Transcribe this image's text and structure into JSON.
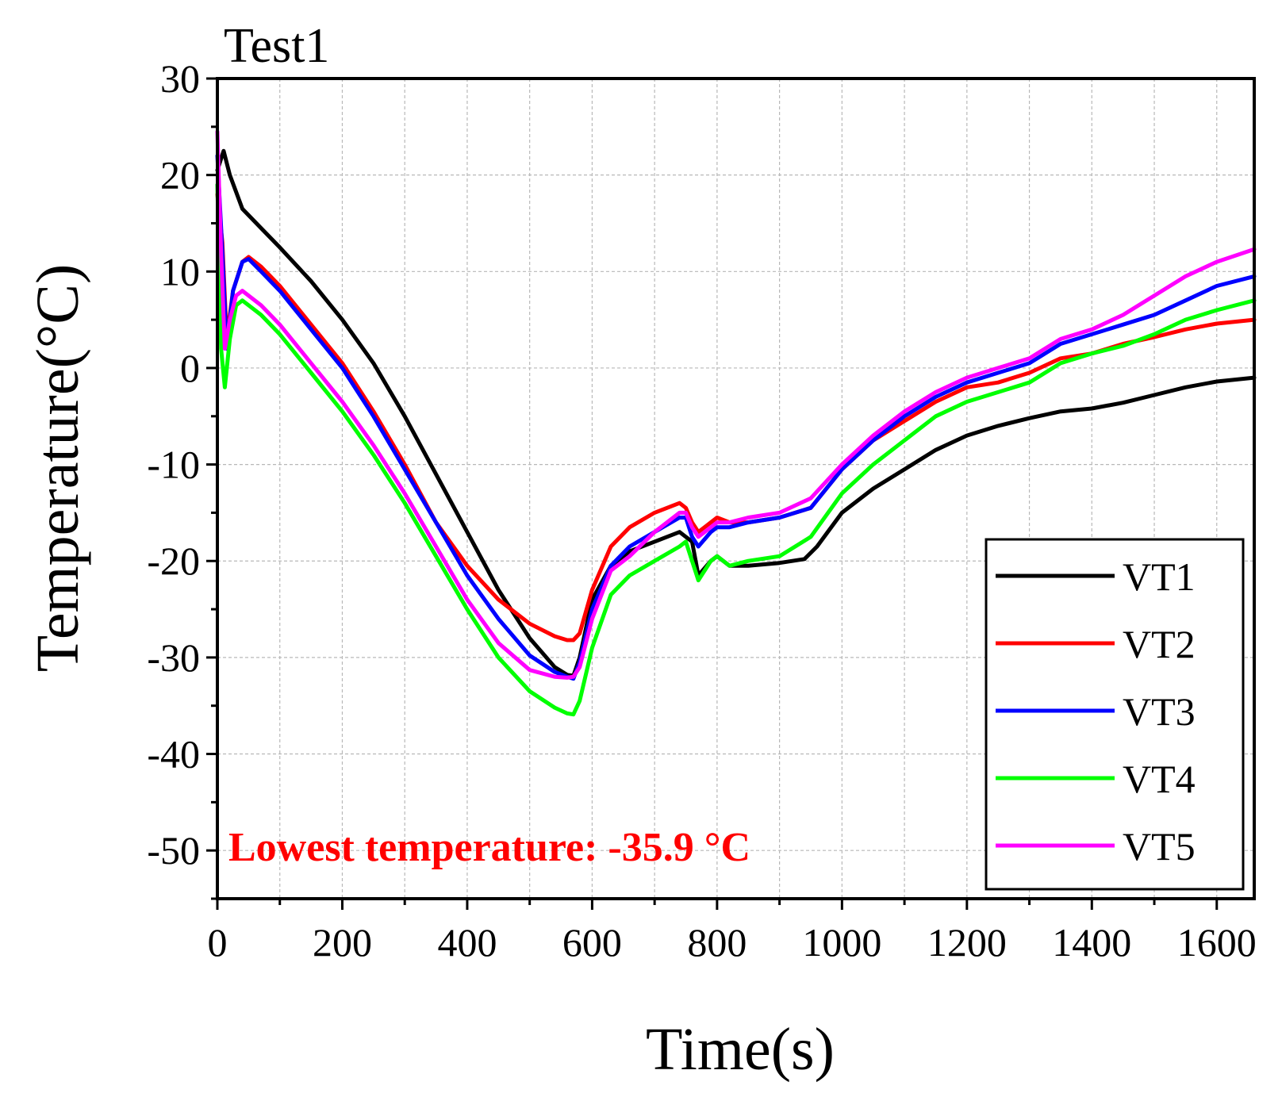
{
  "chart_data": {
    "type": "line",
    "title": "Test1",
    "xlabel": "Time(s)",
    "ylabel": "Temperature(°C)",
    "xlim": [
      0,
      1660
    ],
    "ylim": [
      -55,
      30
    ],
    "xticks": [
      0,
      200,
      400,
      600,
      800,
      1000,
      1200,
      1400,
      1600
    ],
    "xtick_labels": [
      "0",
      "200",
      "400",
      "600",
      "800",
      "1000",
      "1200",
      "1400",
      "1600"
    ],
    "yticks": [
      30,
      20,
      10,
      0,
      -10,
      -20,
      -30,
      -40,
      -50
    ],
    "ytick_labels": [
      "30",
      "20",
      "10",
      "0",
      "-10",
      "-20",
      "-30",
      "-40",
      "-50"
    ],
    "grid": true,
    "legend_position": "bottom-right",
    "annotation": {
      "text": "Lowest temperature: -35.9 °C",
      "color": "#ff0000"
    },
    "series": [
      {
        "name": "VT1",
        "color": "#000000",
        "x": [
          0,
          10,
          20,
          40,
          70,
          100,
          150,
          200,
          250,
          300,
          350,
          400,
          450,
          500,
          540,
          560,
          570,
          580,
          600,
          630,
          660,
          700,
          740,
          750,
          760,
          770,
          790,
          800,
          820,
          850,
          900,
          940,
          960,
          1000,
          1050,
          1100,
          1150,
          1200,
          1250,
          1300,
          1350,
          1400,
          1450,
          1500,
          1550,
          1600,
          1660
        ],
        "y": [
          20.5,
          22.5,
          20,
          16.5,
          14.5,
          12.5,
          9,
          5,
          0.5,
          -5,
          -11,
          -17,
          -23,
          -28,
          -31,
          -31.8,
          -31.9,
          -30,
          -24,
          -20.5,
          -19,
          -18,
          -17,
          -17.5,
          -18,
          -21.5,
          -20,
          -19.5,
          -20.5,
          -20.5,
          -20.2,
          -19.8,
          -18.5,
          -15,
          -12.5,
          -10.5,
          -8.5,
          -7,
          -6,
          -5.2,
          -4.5,
          -4.2,
          -3.6,
          -2.8,
          -2,
          -1.4,
          -1
        ]
      },
      {
        "name": "VT2",
        "color": "#ff0000",
        "x": [
          0,
          8,
          15,
          25,
          40,
          50,
          70,
          100,
          150,
          200,
          250,
          300,
          350,
          400,
          450,
          500,
          540,
          560,
          570,
          580,
          600,
          630,
          660,
          700,
          740,
          750,
          760,
          770,
          790,
          800,
          820,
          850,
          900,
          950,
          1000,
          1050,
          1100,
          1150,
          1200,
          1250,
          1300,
          1350,
          1400,
          1450,
          1500,
          1550,
          1600,
          1660
        ],
        "y": [
          18,
          13,
          3,
          8,
          11,
          11.5,
          10.5,
          8.5,
          4.5,
          0.5,
          -4.5,
          -10,
          -16,
          -20.5,
          -24,
          -26.5,
          -27.8,
          -28.2,
          -28.2,
          -27.5,
          -23,
          -18.5,
          -16.5,
          -15,
          -14,
          -14.5,
          -16,
          -17,
          -16,
          -15.5,
          -16,
          -16,
          -15.5,
          -14.5,
          -10.5,
          -7.5,
          -5.5,
          -3.5,
          -2,
          -1.5,
          -0.5,
          1,
          1.5,
          2.5,
          3.2,
          4,
          4.6,
          5
        ]
      },
      {
        "name": "VT3",
        "color": "#0000ff",
        "x": [
          0,
          8,
          15,
          25,
          40,
          50,
          70,
          100,
          150,
          200,
          250,
          300,
          350,
          400,
          450,
          500,
          540,
          560,
          570,
          580,
          600,
          630,
          660,
          700,
          740,
          750,
          760,
          770,
          790,
          800,
          820,
          850,
          900,
          950,
          1000,
          1050,
          1100,
          1150,
          1200,
          1250,
          1300,
          1350,
          1400,
          1450,
          1500,
          1550,
          1600,
          1660
        ],
        "y": [
          22,
          12,
          2,
          8,
          11,
          11.3,
          10,
          8,
          4,
          0,
          -5,
          -10.5,
          -16,
          -21.5,
          -26,
          -29.8,
          -31.5,
          -32,
          -32.2,
          -30.5,
          -25,
          -20.5,
          -18.5,
          -17,
          -15.5,
          -15.5,
          -17.5,
          -18.5,
          -17,
          -16.5,
          -16.5,
          -16,
          -15.5,
          -14.5,
          -10.5,
          -7.5,
          -5,
          -3,
          -1.5,
          -0.5,
          0.5,
          2.5,
          3.5,
          4.5,
          5.5,
          7,
          8.5,
          9.5
        ]
      },
      {
        "name": "VT4",
        "color": "#00ff00",
        "x": [
          0,
          6,
          12,
          20,
          30,
          40,
          70,
          100,
          150,
          200,
          250,
          300,
          350,
          400,
          450,
          500,
          540,
          560,
          570,
          580,
          600,
          630,
          660,
          700,
          740,
          750,
          760,
          770,
          790,
          800,
          820,
          850,
          900,
          950,
          1000,
          1050,
          1100,
          1150,
          1200,
          1250,
          1300,
          1350,
          1400,
          1450,
          1500,
          1550,
          1600,
          1660
        ],
        "y": [
          19,
          2,
          -2,
          3,
          6.5,
          7,
          5.5,
          3.5,
          -0.5,
          -4.5,
          -9,
          -14,
          -19.5,
          -25,
          -30,
          -33.5,
          -35.2,
          -35.8,
          -35.9,
          -34.5,
          -29,
          -23.5,
          -21.5,
          -20,
          -18.5,
          -18,
          -20,
          -22,
          -20,
          -19.5,
          -20.5,
          -20,
          -19.5,
          -17.5,
          -13,
          -10,
          -7.5,
          -5,
          -3.5,
          -2.5,
          -1.5,
          0.5,
          1.5,
          2.3,
          3.5,
          5,
          6,
          7
        ]
      },
      {
        "name": "VT5",
        "color": "#ff00ff",
        "x": [
          0,
          6,
          12,
          20,
          30,
          40,
          70,
          100,
          150,
          200,
          250,
          300,
          350,
          400,
          450,
          500,
          540,
          560,
          570,
          580,
          600,
          630,
          660,
          700,
          740,
          750,
          760,
          770,
          790,
          800,
          820,
          850,
          900,
          950,
          1000,
          1050,
          1100,
          1150,
          1200,
          1250,
          1300,
          1350,
          1400,
          1450,
          1500,
          1550,
          1600,
          1660
        ],
        "y": [
          24.5,
          12,
          2,
          5,
          7.5,
          8,
          6.5,
          4.5,
          0.5,
          -3.5,
          -8,
          -13,
          -18.5,
          -24,
          -28.5,
          -31.3,
          -32,
          -32.1,
          -32,
          -31,
          -26,
          -21,
          -19.5,
          -17,
          -15,
          -15,
          -16.5,
          -17.5,
          -16.5,
          -16,
          -16,
          -15.5,
          -15,
          -13.5,
          -10,
          -7,
          -4.5,
          -2.5,
          -1,
          0,
          1,
          3,
          4,
          5.5,
          7.5,
          9.5,
          11,
          12.3
        ]
      }
    ]
  }
}
